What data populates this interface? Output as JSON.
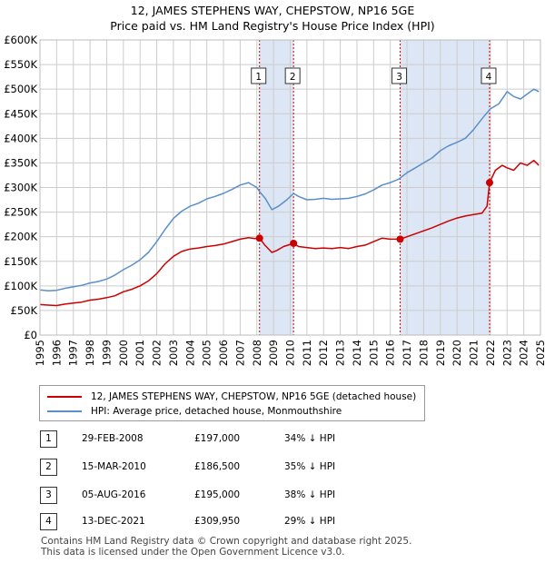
{
  "title_line1": "12, JAMES STEPHENS WAY, CHEPSTOW, NP16 5GE",
  "title_line2": "Price paid vs. HM Land Registry's House Price Index (HPI)",
  "colors": {
    "property": "#cc0000",
    "hpi": "#5b8fc9",
    "shade": "#dde6f5",
    "vline": "#cc0000",
    "grid": "#cccccc"
  },
  "chart_data": {
    "type": "line",
    "title": "Price paid vs. HM Land Registry's House Price Index (HPI)",
    "xlabel": "",
    "ylabel": "",
    "xlim": [
      1995,
      2025
    ],
    "ylim": [
      0,
      600000
    ],
    "y_ticks": [
      {
        "value": 0,
        "label": "£0"
      },
      {
        "value": 50000,
        "label": "£50K"
      },
      {
        "value": 100000,
        "label": "£100K"
      },
      {
        "value": 150000,
        "label": "£150K"
      },
      {
        "value": 200000,
        "label": "£200K"
      },
      {
        "value": 250000,
        "label": "£250K"
      },
      {
        "value": 300000,
        "label": "£300K"
      },
      {
        "value": 350000,
        "label": "£350K"
      },
      {
        "value": 400000,
        "label": "£400K"
      },
      {
        "value": 450000,
        "label": "£450K"
      },
      {
        "value": 500000,
        "label": "£500K"
      },
      {
        "value": 550000,
        "label": "£550K"
      },
      {
        "value": 600000,
        "label": "£600K"
      }
    ],
    "x_ticks": [
      "1995",
      "1996",
      "1997",
      "1998",
      "1999",
      "2000",
      "2001",
      "2002",
      "2003",
      "2004",
      "2005",
      "2006",
      "2007",
      "2008",
      "2009",
      "2010",
      "2011",
      "2012",
      "2013",
      "2014",
      "2015",
      "2016",
      "2017",
      "2018",
      "2019",
      "2020",
      "2021",
      "2022",
      "2023",
      "2024",
      "2025"
    ],
    "series": [
      {
        "name": "12, JAMES STEPHENS WAY, CHEPSTOW, NP16 5GE (detached house)",
        "color": "#cc0000",
        "x": [
          1995.0,
          1995.5,
          1996.0,
          1996.5,
          1997.0,
          1997.5,
          1998.0,
          1998.5,
          1999.0,
          1999.5,
          2000.0,
          2000.5,
          2001.0,
          2001.5,
          2002.0,
          2002.5,
          2003.0,
          2003.5,
          2004.0,
          2004.5,
          2005.0,
          2005.5,
          2006.0,
          2006.5,
          2007.0,
          2007.5,
          2007.9,
          2008.16,
          2008.5,
          2008.9,
          2009.2,
          2009.6,
          2010.2,
          2010.5,
          2011.0,
          2011.5,
          2012.0,
          2012.5,
          2013.0,
          2013.5,
          2014.0,
          2014.5,
          2015.0,
          2015.5,
          2016.0,
          2016.59,
          2017.0,
          2017.5,
          2018.0,
          2018.5,
          2019.0,
          2019.5,
          2020.0,
          2020.5,
          2021.0,
          2021.5,
          2021.8,
          2021.95,
          2022.3,
          2022.7,
          2023.0,
          2023.4,
          2023.8,
          2024.2,
          2024.6,
          2024.9
        ],
        "y": [
          62000,
          61000,
          60000,
          63000,
          65000,
          67000,
          71000,
          73000,
          76000,
          80000,
          88000,
          93000,
          100000,
          110000,
          125000,
          145000,
          160000,
          170000,
          175000,
          177000,
          180000,
          182000,
          185000,
          190000,
          195000,
          198000,
          196000,
          197000,
          182000,
          168000,
          172000,
          180000,
          186500,
          180000,
          178000,
          176000,
          177000,
          176000,
          178000,
          176000,
          180000,
          183000,
          190000,
          197000,
          195000,
          195000,
          200000,
          206000,
          212000,
          218000,
          225000,
          232000,
          238000,
          242000,
          245000,
          248000,
          262000,
          309950,
          335000,
          345000,
          340000,
          335000,
          350000,
          345000,
          355000,
          345000
        ]
      },
      {
        "name": "HPI: Average price, detached house, Monmouthshire",
        "color": "#5b8fc9",
        "x": [
          1995.0,
          1995.5,
          1996.0,
          1996.5,
          1997.0,
          1997.5,
          1998.0,
          1998.5,
          1999.0,
          1999.5,
          2000.0,
          2000.5,
          2001.0,
          2001.5,
          2002.0,
          2002.5,
          2003.0,
          2003.5,
          2004.0,
          2004.5,
          2005.0,
          2005.5,
          2006.0,
          2006.5,
          2007.0,
          2007.5,
          2008.0,
          2008.2,
          2008.5,
          2008.9,
          2009.3,
          2009.8,
          2010.2,
          2010.5,
          2011.0,
          2011.5,
          2012.0,
          2012.5,
          2013.0,
          2013.5,
          2014.0,
          2014.5,
          2015.0,
          2015.5,
          2016.0,
          2016.5,
          2017.0,
          2017.5,
          2018.0,
          2018.5,
          2019.0,
          2019.5,
          2020.0,
          2020.5,
          2021.0,
          2021.5,
          2022.0,
          2022.5,
          2023.0,
          2023.4,
          2023.8,
          2024.2,
          2024.6,
          2024.9
        ],
        "y": [
          92000,
          90000,
          91000,
          95000,
          98000,
          101000,
          106000,
          109000,
          114000,
          122000,
          133000,
          142000,
          153000,
          168000,
          190000,
          215000,
          237000,
          252000,
          262000,
          268000,
          277000,
          282000,
          288000,
          296000,
          305000,
          310000,
          300000,
          290000,
          278000,
          255000,
          262000,
          275000,
          288000,
          282000,
          275000,
          276000,
          278000,
          276000,
          277000,
          278000,
          282000,
          287000,
          295000,
          305000,
          310000,
          317000,
          330000,
          340000,
          350000,
          360000,
          375000,
          385000,
          392000,
          400000,
          418000,
          440000,
          460000,
          470000,
          495000,
          485000,
          480000,
          490000,
          500000,
          495000
        ]
      }
    ],
    "shaded_ranges": [
      [
        2008.16,
        2010.2
      ],
      [
        2016.59,
        2021.95
      ]
    ],
    "sale_markers": [
      {
        "label": "1",
        "x": 2008.16,
        "y": 197000
      },
      {
        "label": "2",
        "x": 2010.2,
        "y": 186500
      },
      {
        "label": "3",
        "x": 2016.59,
        "y": 195000
      },
      {
        "label": "4",
        "x": 2021.95,
        "y": 309950
      }
    ]
  },
  "legend": {
    "property_label": "12, JAMES STEPHENS WAY, CHEPSTOW, NP16 5GE (detached house)",
    "hpi_label": "HPI: Average price, detached house, Monmouthshire"
  },
  "sales": [
    {
      "num": "1",
      "date": "29-FEB-2008",
      "price": "£197,000",
      "hpi": "34% ↓ HPI"
    },
    {
      "num": "2",
      "date": "15-MAR-2010",
      "price": "£186,500",
      "hpi": "35% ↓ HPI"
    },
    {
      "num": "3",
      "date": "05-AUG-2016",
      "price": "£195,000",
      "hpi": "38% ↓ HPI"
    },
    {
      "num": "4",
      "date": "13-DEC-2021",
      "price": "£309,950",
      "hpi": "29% ↓ HPI"
    }
  ],
  "footer": {
    "line1": "Contains HM Land Registry data © Crown copyright and database right 2025.",
    "line2": "This data is licensed under the Open Government Licence v3.0."
  }
}
